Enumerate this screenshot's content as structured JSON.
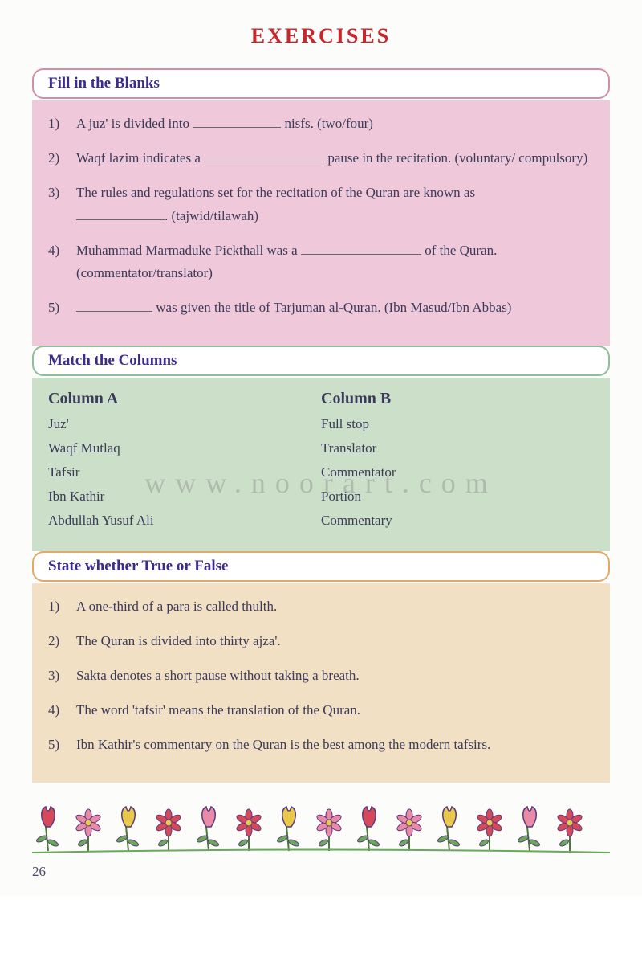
{
  "title": "EXERCISES",
  "title_color": "#c9252b",
  "title_fontsize": 26,
  "page_number": "26",
  "watermark": "www.noorart.com",
  "sections": {
    "fill_blanks": {
      "header": "Fill in the Blanks",
      "header_color": "#3b2a8f",
      "border_color": "#d08fa8",
      "body_bg": "#efc9d9",
      "items": [
        {
          "num": "1)",
          "text_before": "A juz' is divided into ",
          "text_after": " nisfs. (two/four)",
          "blank": "med"
        },
        {
          "num": "2)",
          "text_before": "Waqf lazim indicates a ",
          "text_after": " pause in the recitation. (voluntary/ compulsory)",
          "blank": "long"
        },
        {
          "num": "3)",
          "text_before": "The rules and regulations set for the recitation of the Quran are known as ",
          "text_after": ". (tajwid/tilawah)",
          "blank": "med",
          "blank_start": true
        },
        {
          "num": "4)",
          "text_before": "Muhammad Marmaduke Pickthall was a ",
          "text_after": " of the Quran. (commentator/translator)",
          "blank": "long"
        },
        {
          "num": "5)",
          "text_before": "",
          "text_after": " was given the title of Tarjuman al-Quran. (Ibn Masud/Ibn Abbas)",
          "blank": "short",
          "blank_first": true
        }
      ]
    },
    "match": {
      "header": "Match the Columns",
      "header_color": "#3b2a8f",
      "border_color": "#8fbf9a",
      "body_bg": "#cce0c9",
      "col_a_header": "Column A",
      "col_b_header": "Column B",
      "col_a": [
        "Juz'",
        "Waqf Mutlaq",
        "Tafsir",
        "Ibn Kathir",
        "Abdullah Yusuf Ali"
      ],
      "col_b": [
        "Full stop",
        "Translator",
        "Commentator",
        "Portion",
        "Commentary"
      ]
    },
    "true_false": {
      "header": "State whether True or False",
      "header_color": "#3b2a8f",
      "border_color": "#e0a86a",
      "body_bg": "#f2e0c4",
      "items": [
        {
          "num": "1)",
          "text": "A one-third of a para is called thulth."
        },
        {
          "num": "2)",
          "text": "The Quran is divided into thirty ajza'."
        },
        {
          "num": "3)",
          "text": "Sakta denotes a short pause without taking a breath."
        },
        {
          "num": "4)",
          "text": "The word 'tafsir' means the translation of the Quran."
        },
        {
          "num": "5)",
          "text": "Ibn Kathir's commentary on the Quran is the best among the modern tafsirs."
        }
      ]
    }
  },
  "flower_colors": {
    "red": "#d44a5a",
    "pink": "#e88aa8",
    "yellow": "#e8c94a",
    "leaf": "#6aa85a",
    "stem": "#4a7a3a",
    "outline": "#5a3a7a"
  }
}
